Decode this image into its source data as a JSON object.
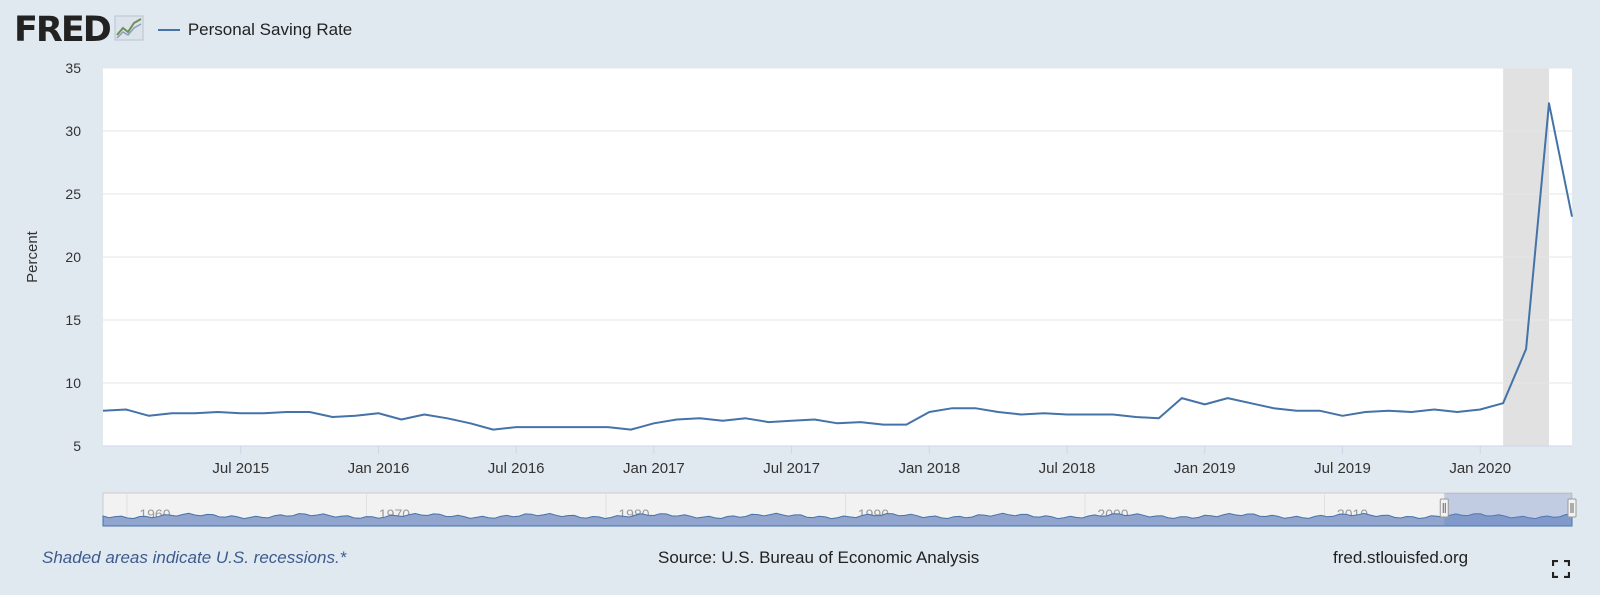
{
  "header": {
    "logo_text": "FRED",
    "logo_icon": "chart-line-icon"
  },
  "footer": {
    "recession_note": "Shaded areas indicate U.S. recessions.*",
    "source": "Source: U.S. Bureau of Economic Analysis",
    "site": "fred.stlouisfed.org",
    "fullscreen_icon": "fullscreen-icon"
  },
  "chart_data": {
    "type": "line",
    "ylabel": "Percent",
    "ylim": [
      5,
      35
    ],
    "y_ticks": [
      5,
      10,
      15,
      20,
      25,
      30,
      35
    ],
    "x_range": [
      "2015-01",
      "2020-05"
    ],
    "x_ticks": [
      {
        "label": "Jul 2015",
        "date": "2015-07"
      },
      {
        "label": "Jan 2016",
        "date": "2016-01"
      },
      {
        "label": "Jul 2016",
        "date": "2016-07"
      },
      {
        "label": "Jan 2017",
        "date": "2017-01"
      },
      {
        "label": "Jul 2017",
        "date": "2017-07"
      },
      {
        "label": "Jan 2018",
        "date": "2018-01"
      },
      {
        "label": "Jul 2018",
        "date": "2018-07"
      },
      {
        "label": "Jan 2019",
        "date": "2019-01"
      },
      {
        "label": "Jul 2019",
        "date": "2019-07"
      },
      {
        "label": "Jan 2020",
        "date": "2020-01"
      }
    ],
    "grid": true,
    "series": [
      {
        "name": "Personal Saving Rate",
        "color": "#4572a7",
        "start": "2015-01",
        "values": [
          7.8,
          7.9,
          7.4,
          7.6,
          7.6,
          7.7,
          7.6,
          7.6,
          7.7,
          7.7,
          7.3,
          7.4,
          7.6,
          7.1,
          7.5,
          7.2,
          6.8,
          6.3,
          6.5,
          6.5,
          6.5,
          6.5,
          6.5,
          6.3,
          6.8,
          7.1,
          7.2,
          7.0,
          7.2,
          6.9,
          7.0,
          7.1,
          6.8,
          6.9,
          6.7,
          6.7,
          7.7,
          8.0,
          8.0,
          7.7,
          7.5,
          7.6,
          7.5,
          7.5,
          7.5,
          7.3,
          7.2,
          8.8,
          8.3,
          8.8,
          8.4,
          8.0,
          7.8,
          7.8,
          7.4,
          7.7,
          7.8,
          7.7,
          7.9,
          7.7,
          7.9,
          8.4,
          12.7,
          32.2,
          23.2
        ]
      }
    ],
    "recessions": [
      {
        "start": "2020-02",
        "end": "2020-03"
      }
    ],
    "navigator": {
      "labels": [
        "1960",
        "1970",
        "1980",
        "1990",
        "2000",
        "2010"
      ],
      "range": [
        "1959-01",
        "2020-05"
      ],
      "selected": [
        "2015-01",
        "2020-05"
      ]
    }
  }
}
